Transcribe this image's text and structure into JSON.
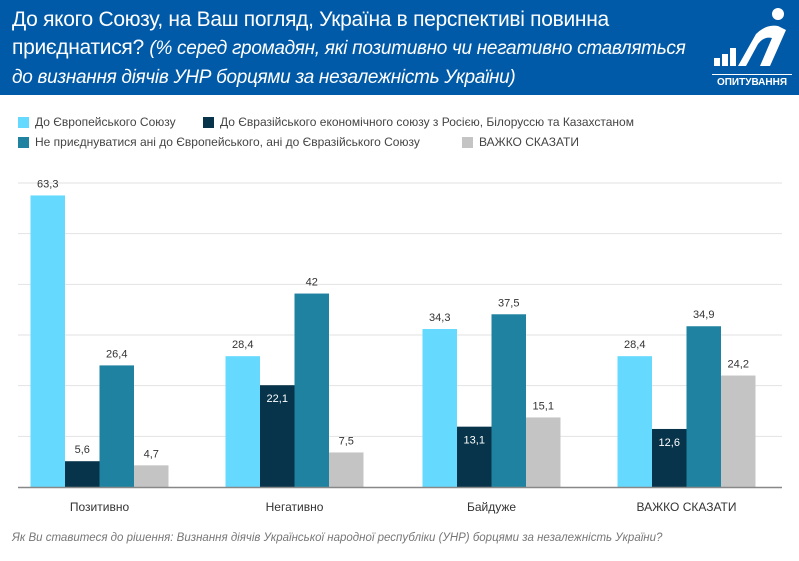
{
  "header": {
    "title": "До якого Союзу, на Ваш погляд, Україна в перспективі повинна приєднатися?",
    "subtitle": "(% серед громадян, які позитивно чи негативно ставляться до визнання діячів УНР борцями за незалежність України)",
    "logo_text": "ОПИТУВАННЯ"
  },
  "note": "Як Ви ставитеся до рішення: Визнання діячів Української народної республіки (УНР) борцями за незалежність України?",
  "chart_data": {
    "type": "bar",
    "categories": [
      "Позитивно",
      "Негативно",
      "Байдуже",
      "ВАЖКО СКАЗАТИ"
    ],
    "series": [
      {
        "name": "До Європейського Союзу",
        "color": "#66d9ff",
        "values": [
          63.3,
          28.4,
          34.3,
          28.4
        ]
      },
      {
        "name": "До Євразійського економічного союзу з Росією, Білоруссю та Казахстаном",
        "color": "#07344a",
        "values": [
          5.6,
          22.1,
          13.1,
          12.6
        ]
      },
      {
        "name": "Не приєднуватися ані до Європейського, ані до Євразійського Союзу",
        "color": "#1e82a0",
        "values": [
          26.4,
          42,
          37.5,
          34.9
        ]
      },
      {
        "name": "ВАЖКО СКАЗАТИ",
        "color": "#c4c4c4",
        "values": [
          4.7,
          7.5,
          15.1,
          24.2
        ]
      }
    ],
    "ylim": [
      0,
      66
    ],
    "grid": true,
    "legend": "top-left"
  }
}
